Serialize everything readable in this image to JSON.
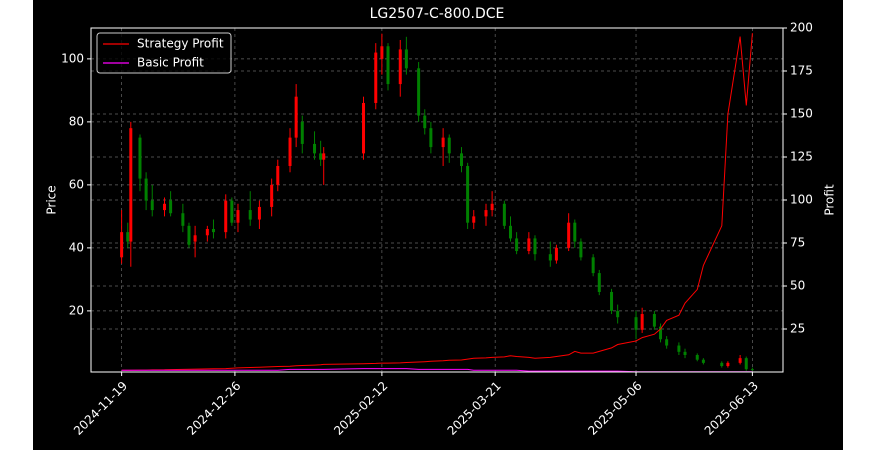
{
  "chart_data": {
    "type": "candlestick",
    "title": "LG2507-C-800.DCE",
    "ylabel": "Price",
    "y2label": "Profit",
    "x": [
      "2024-11-19",
      "2024-11-21",
      "2024-11-22",
      "2024-11-25",
      "2024-11-27",
      "2024-11-29",
      "2024-12-03",
      "2024-12-05",
      "2024-12-09",
      "2024-12-11",
      "2024-12-13",
      "2024-12-17",
      "2024-12-19",
      "2024-12-23",
      "2024-12-25",
      "2024-12-27",
      "2024-12-31",
      "2025-01-03",
      "2025-01-07",
      "2025-01-09",
      "2025-01-13",
      "2025-01-15",
      "2025-01-17",
      "2025-01-21",
      "2025-01-23",
      "2025-01-24",
      "2025-02-06",
      "2025-02-10",
      "2025-02-12",
      "2025-02-14",
      "2025-02-18",
      "2025-02-20",
      "2025-02-24",
      "2025-02-26",
      "2025-02-28",
      "2025-03-04",
      "2025-03-06",
      "2025-03-10",
      "2025-03-12",
      "2025-03-14",
      "2025-03-18",
      "2025-03-20",
      "2025-03-24",
      "2025-03-26",
      "2025-03-28",
      "2025-04-01",
      "2025-04-03",
      "2025-04-08",
      "2025-04-10",
      "2025-04-14",
      "2025-04-16",
      "2025-04-18",
      "2025-04-22",
      "2025-04-24",
      "2025-04-28",
      "2025-04-30",
      "2025-05-06",
      "2025-05-08",
      "2025-05-12",
      "2025-05-14",
      "2025-05-16",
      "2025-05-20",
      "2025-05-22",
      "2025-05-26",
      "2025-05-28",
      "2025-06-03",
      "2025-06-05",
      "2025-06-09",
      "2025-06-11",
      "2025-06-13"
    ],
    "candles": {
      "open": [
        37,
        45,
        42,
        75,
        62,
        55,
        52,
        55,
        51,
        47,
        42,
        44,
        46,
        45,
        55,
        48,
        52,
        49,
        53,
        60,
        66,
        75,
        80,
        73,
        70,
        68,
        70,
        86,
        100,
        104,
        92,
        103,
        97,
        82,
        78,
        72,
        75,
        70,
        66,
        48,
        50,
        52,
        54,
        47,
        43,
        39,
        43,
        38,
        36,
        40,
        48,
        42,
        37,
        32,
        26,
        20,
        18,
        14,
        19,
        15,
        11,
        9,
        7,
        6,
        4.5,
        3.5,
        2.5,
        3.5,
        5,
        1.5
      ],
      "high": [
        52,
        48,
        80,
        76,
        64,
        60,
        56,
        58,
        54,
        48,
        47,
        47,
        49,
        57,
        56,
        54,
        58,
        55,
        62,
        68,
        78,
        92,
        82,
        77,
        74,
        72,
        88,
        105,
        108,
        105,
        106,
        107,
        99,
        84,
        80,
        78,
        76,
        72,
        67,
        52,
        54,
        58,
        55,
        50,
        45,
        45,
        44,
        42,
        41,
        51,
        49,
        43,
        38,
        33,
        27,
        22,
        20,
        21,
        20,
        16,
        12,
        10,
        8,
        6.5,
        5,
        4,
        4,
        6,
        5.5,
        2
      ],
      "low": [
        35,
        40,
        34,
        58,
        52,
        50,
        50,
        50,
        45,
        40,
        37,
        42,
        43,
        43,
        47,
        45,
        47,
        46,
        50,
        58,
        64,
        72,
        70,
        68,
        66,
        60,
        68,
        84,
        95,
        90,
        88,
        95,
        80,
        76,
        70,
        66,
        67,
        64,
        46,
        46,
        47,
        50,
        46,
        42,
        38,
        38,
        36,
        34,
        35,
        39,
        40,
        36,
        31,
        25,
        19,
        16,
        11,
        13,
        14,
        10,
        8,
        6,
        5,
        4,
        3,
        2,
        2,
        3,
        1,
        1
      ],
      "close": [
        45,
        42,
        78,
        62,
        55,
        52,
        54,
        51,
        47,
        41,
        44,
        46,
        45,
        55,
        48,
        52,
        49,
        53,
        60,
        66,
        75,
        88,
        73,
        70,
        68,
        70,
        86,
        102,
        104,
        92,
        103,
        97,
        82,
        78,
        72,
        75,
        70,
        66,
        48,
        50,
        52,
        54,
        47,
        43,
        39,
        43,
        38,
        36,
        40,
        48,
        42,
        37,
        32,
        26,
        20,
        18,
        14,
        19,
        15,
        11,
        9,
        7,
        6,
        4.5,
        3.5,
        2.5,
        3.5,
        5,
        1.5,
        1.2
      ]
    },
    "up_color": "#ff0000",
    "down_color": "#008000",
    "series": [
      {
        "name": "Strategy Profit",
        "color": "#ff0000",
        "axis": "y2",
        "values": [
          1,
          1,
          1,
          1.1,
          1.1,
          1.2,
          1.3,
          1.4,
          1.5,
          1.6,
          1.7,
          1.8,
          1.9,
          2,
          2.2,
          2.4,
          2.6,
          2.8,
          3,
          3.2,
          3.4,
          3.6,
          3.8,
          4,
          4.2,
          4.4,
          4.8,
          5,
          5.2,
          5.2,
          5.3,
          5.5,
          5.8,
          6,
          6.2,
          6.5,
          6.8,
          7,
          7.5,
          8,
          8.2,
          8.5,
          8.8,
          9.5,
          9,
          8.5,
          8,
          8.5,
          9,
          10,
          12,
          11,
          11,
          12,
          14,
          16,
          18,
          20,
          22,
          25,
          30,
          33,
          40,
          48,
          62,
          85,
          150,
          195,
          155,
          197
        ]
      },
      {
        "name": "Basic Profit",
        "color": "#ff00ff",
        "axis": "y2",
        "values": [
          1,
          1,
          1,
          1,
          1,
          1,
          1,
          1,
          1,
          1,
          1,
          1,
          1,
          1,
          1,
          1,
          1,
          1,
          1,
          1,
          1.5,
          1.5,
          1.5,
          1.5,
          1.5,
          1.5,
          2,
          2,
          2,
          2,
          2,
          2,
          1.5,
          1.5,
          1.5,
          1.5,
          1.5,
          1.5,
          1.5,
          1,
          1,
          1,
          1,
          1,
          1,
          0.5,
          0.5,
          0.5,
          0.5,
          0.5,
          0.5,
          0.5,
          0.5,
          0.5,
          0.5,
          0.5,
          0.2,
          0.2,
          0.2,
          0.2,
          0.2,
          0.2,
          0.2,
          0.2,
          0.2,
          0.2,
          0.2,
          0.2,
          0.2,
          0.2
        ]
      }
    ],
    "xlim": [
      "2024-11-09",
      "2025-06-23"
    ],
    "xticks": [
      "2024-11-19",
      "2024-12-26",
      "2025-02-12",
      "2025-03-21",
      "2025-05-06",
      "2025-06-13"
    ],
    "ylim": [
      0.6,
      109.8
    ],
    "yticks": [
      20,
      40,
      60,
      80,
      100
    ],
    "y2lim": [
      0,
      200
    ],
    "y2ticks": [
      25,
      50,
      75,
      100,
      125,
      150,
      175,
      200
    ],
    "grid": true,
    "legend": "upper left"
  }
}
